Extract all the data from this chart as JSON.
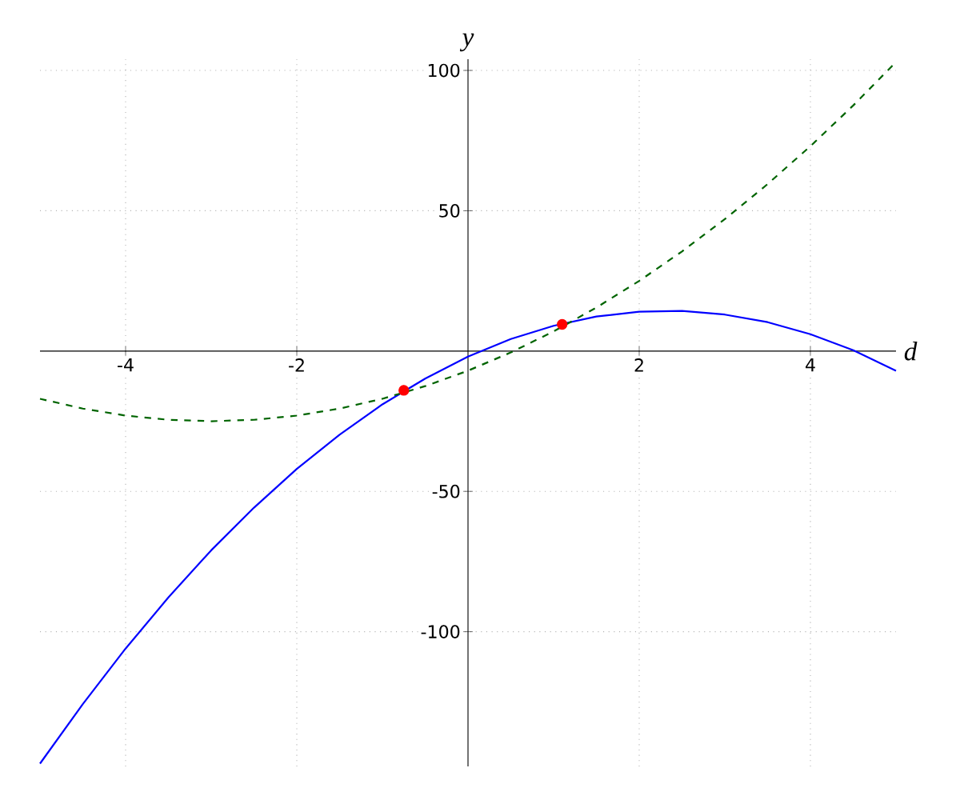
{
  "chart_data": {
    "type": "line",
    "xlabel": "d",
    "ylabel": "y",
    "xlim": [
      -5,
      5
    ],
    "ylim": [
      -148,
      104
    ],
    "xticks": [
      -4,
      -2,
      2,
      4
    ],
    "yticks": [
      -100,
      -50,
      50,
      100
    ],
    "grid": true,
    "x": [
      -5,
      -4.5,
      -4,
      -3.5,
      -3,
      -2.5,
      -2,
      -1.5,
      -1,
      -0.5,
      0,
      0.5,
      1,
      1.5,
      2,
      2.5,
      3,
      3.5,
      4,
      4.5,
      5
    ],
    "series": [
      {
        "color": "#0000ff",
        "line_style": "solid",
        "marker": "none",
        "values": [
          -147,
          -125.8,
          -106,
          -87.8,
          -71,
          -55.8,
          -42,
          -29.8,
          -19,
          -9.8,
          -2,
          4.3,
          9,
          12.3,
          14,
          14.3,
          13,
          10.3,
          6,
          0.3,
          -7
        ]
      },
      {
        "color": "#006400",
        "line_style": "dashed",
        "marker": "none",
        "values": [
          -17,
          -20.5,
          -23,
          -24.5,
          -25,
          -24.5,
          -23,
          -20.5,
          -17,
          -12.5,
          -7,
          -0.5,
          7,
          15.5,
          25,
          35.5,
          47,
          59.5,
          73,
          87.5,
          103
        ]
      },
      {
        "type": "scatter",
        "color": "#ff0000",
        "marker": "circle",
        "x": [
          -0.75,
          1.1
        ],
        "values": [
          -14,
          9.5
        ]
      }
    ]
  }
}
